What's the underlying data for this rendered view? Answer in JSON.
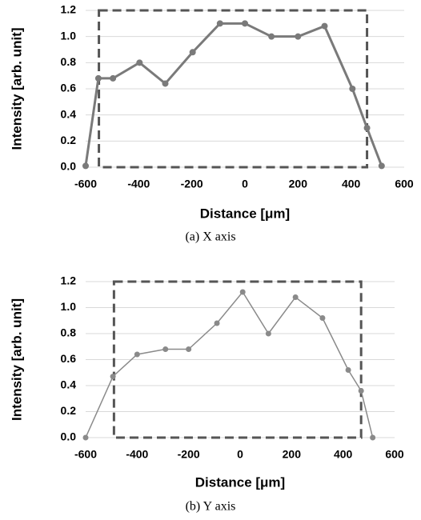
{
  "chart_data": [
    {
      "type": "line",
      "caption": "(a) X axis",
      "xlabel": "Distance [μm]",
      "ylabel": "Intensity [arb. unit]",
      "x": [
        -600,
        -552,
        -497,
        -397,
        -300,
        -197,
        -94,
        0,
        100,
        200,
        300,
        405,
        460,
        515
      ],
      "series": [
        {
          "color": "#7a7a7a",
          "values": [
            0.01,
            0.68,
            0.68,
            0.8,
            0.64,
            0.88,
            1.1,
            1.1,
            1.0,
            1.0,
            1.08,
            0.6,
            0.3,
            0.01
          ]
        }
      ],
      "region": [
        -550,
        460
      ],
      "xlim": [
        -600,
        600
      ],
      "xticks": [
        -600,
        -400,
        -200,
        0,
        200,
        400,
        600
      ],
      "ylim": [
        0,
        1.2
      ],
      "yticks": [
        {
          "value": 0,
          "label": "0.0"
        },
        0.2,
        0.4,
        0.6,
        0.8,
        {
          "value": 1,
          "label": "1.0"
        },
        1.2
      ],
      "grid": true
    },
    {
      "type": "line",
      "caption": "(b) Y axis",
      "xlabel": "Distance [μm]",
      "ylabel": "Intensity [arb. unit]",
      "x": [
        -600,
        -494,
        -400,
        -290,
        -200,
        -90,
        10,
        110,
        215,
        320,
        420,
        470,
        515
      ],
      "series": [
        {
          "color": "#8a8a8a",
          "values": [
            0,
            0.47,
            0.64,
            0.68,
            0.68,
            0.88,
            1.12,
            0.8,
            1.08,
            0.92,
            0.52,
            0.36,
            0
          ]
        }
      ],
      "region": [
        -490,
        470
      ],
      "xlim": [
        -600,
        600
      ],
      "xticks": [
        -600,
        -400,
        -200,
        0,
        200,
        400,
        600
      ],
      "ylim": [
        0,
        1.2
      ],
      "yticks": [
        {
          "value": 0,
          "label": "0.0"
        },
        0.2,
        0.4,
        0.6,
        0.8,
        {
          "value": 1,
          "label": "1.0"
        },
        1.2
      ],
      "grid": true
    }
  ]
}
